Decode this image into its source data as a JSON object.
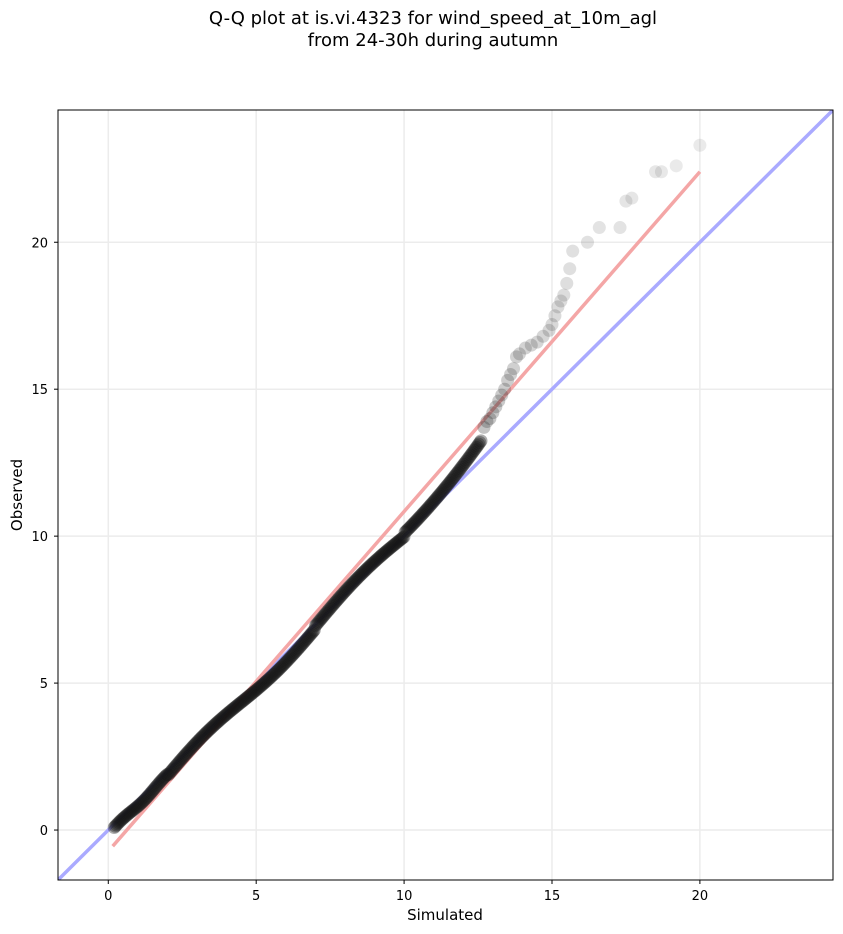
{
  "chart_data": {
    "type": "scatter",
    "title_line1": "Q-Q plot at is.vi.4323 for wind_speed_at_10m_agl",
    "title_line2": "from 24-30h during autumn",
    "xlabel": "Simulated",
    "ylabel": "Observed",
    "xlim": [
      -1.7,
      24.5
    ],
    "ylim": [
      -1.7,
      24.5
    ],
    "xticks": [
      0,
      5,
      10,
      15,
      20
    ],
    "yticks": [
      0,
      5,
      10,
      15,
      20
    ],
    "grid": true,
    "identity_line": {
      "x": [
        -1.7,
        24.5
      ],
      "y": [
        -1.7,
        24.5
      ],
      "color": "#aaaaff"
    },
    "fit_line": {
      "x": [
        0.15,
        20.0
      ],
      "y": [
        -0.55,
        22.4
      ],
      "color": "#f4a6a6"
    },
    "dense_points": {
      "x_start": 0.2,
      "x_end": 12.6,
      "count": 320
    },
    "sparse_points": [
      [
        12.7,
        13.7
      ],
      [
        12.8,
        13.9
      ],
      [
        12.9,
        14.0
      ],
      [
        13.0,
        14.2
      ],
      [
        13.1,
        14.4
      ],
      [
        13.2,
        14.6
      ],
      [
        13.3,
        14.8
      ],
      [
        13.4,
        15.0
      ],
      [
        13.5,
        15.3
      ],
      [
        13.6,
        15.5
      ],
      [
        13.7,
        15.7
      ],
      [
        13.8,
        16.1
      ],
      [
        13.9,
        16.2
      ],
      [
        14.1,
        16.4
      ],
      [
        14.3,
        16.5
      ],
      [
        14.5,
        16.6
      ],
      [
        14.7,
        16.8
      ],
      [
        14.9,
        17.0
      ],
      [
        15.0,
        17.2
      ],
      [
        15.1,
        17.5
      ],
      [
        15.2,
        17.8
      ],
      [
        15.3,
        18.0
      ],
      [
        15.4,
        18.2
      ],
      [
        15.5,
        18.6
      ],
      [
        15.6,
        19.1
      ],
      [
        15.7,
        19.7
      ],
      [
        16.2,
        20.0
      ],
      [
        16.6,
        20.5
      ],
      [
        17.3,
        20.5
      ],
      [
        17.5,
        21.4
      ],
      [
        17.7,
        21.5
      ],
      [
        18.5,
        22.4
      ],
      [
        18.7,
        22.4
      ],
      [
        19.2,
        22.6
      ],
      [
        20.0,
        23.3
      ]
    ]
  }
}
